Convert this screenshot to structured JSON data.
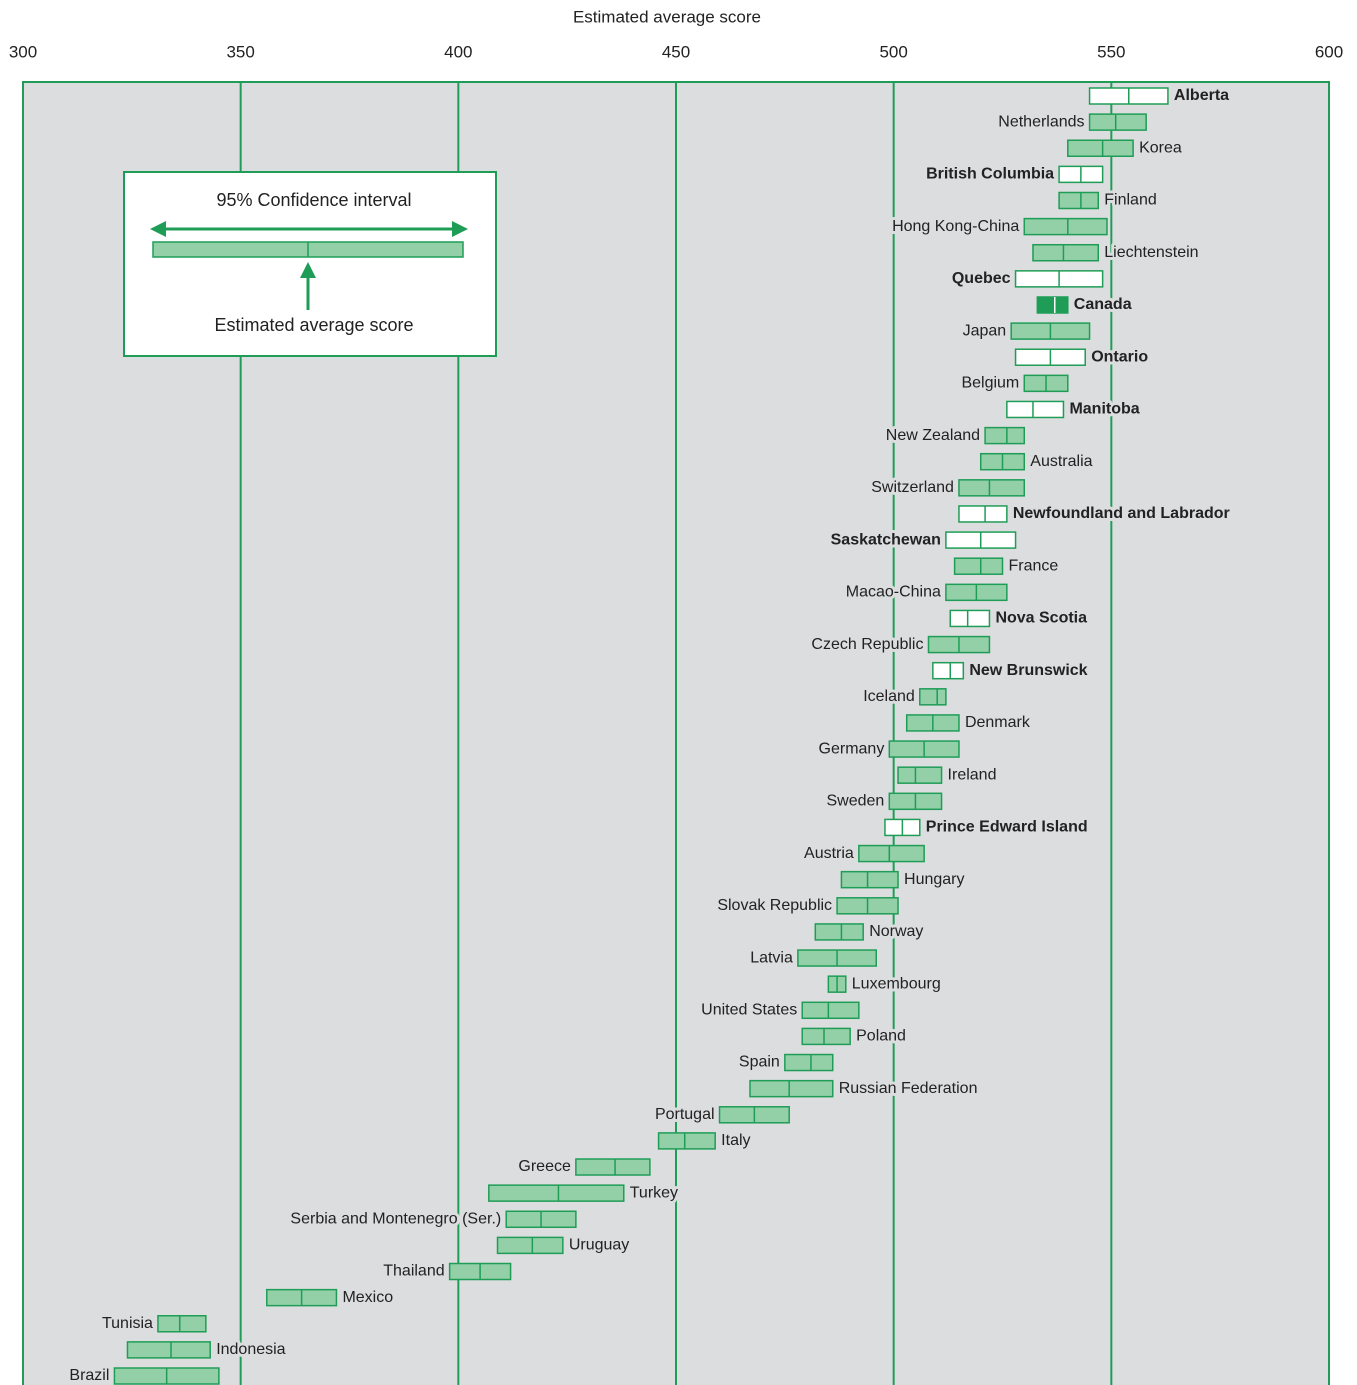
{
  "chart_data": {
    "type": "interval",
    "title": "Estimated average score",
    "xlim": [
      300,
      600
    ],
    "xticks": [
      300,
      350,
      400,
      450,
      500,
      550,
      600
    ],
    "grid": true,
    "color": "#1f9d57",
    "fill": "#93d0a8",
    "background": "#dcdddf",
    "legend": {
      "interval_label": "95% Confidence interval",
      "mean_label": "Estimated average score"
    },
    "categories": [
      "Alberta",
      "Netherlands",
      "Korea",
      "British Columbia",
      "Finland",
      "Hong Kong-China",
      "Liechtenstein",
      "Quebec",
      "Canada",
      "Japan",
      "Ontario",
      "Belgium",
      "Manitoba",
      "New Zealand",
      "Australia",
      "Switzerland",
      "Newfoundland and Labrador",
      "Saskatchewan",
      "France",
      "Macao-China",
      "Nova Scotia",
      "Czech Republic",
      "New Brunswick",
      "Iceland",
      "Denmark",
      "Germany",
      "Ireland",
      "Sweden",
      "Prince Edward Island",
      "Austria",
      "Hungary",
      "Slovak Republic",
      "Norway",
      "Latvia",
      "Luxembourg",
      "United States",
      "Poland",
      "Spain",
      "Russian Federation",
      "Portugal",
      "Italy",
      "Greece",
      "Turkey",
      "Serbia and Montenegro (Ser.)",
      "Uruguay",
      "Thailand",
      "Mexico",
      "Tunisia",
      "Indonesia",
      "Brazil"
    ],
    "low": [
      545,
      545,
      540,
      538,
      538,
      530,
      532,
      528,
      533,
      527,
      528,
      530,
      526,
      521,
      520,
      515,
      515,
      512,
      514,
      512,
      513,
      508,
      509,
      506,
      503,
      499,
      501,
      499,
      498,
      492,
      488,
      487,
      482,
      478,
      485,
      479,
      479,
      475,
      467,
      460,
      446,
      427,
      407,
      411,
      409,
      398,
      356,
      331,
      324,
      321
    ],
    "mean": [
      554,
      551,
      548,
      543,
      543,
      540,
      539,
      538,
      537,
      536,
      536,
      535,
      532,
      526,
      525,
      522,
      521,
      520,
      520,
      519,
      517,
      515,
      513,
      510,
      509,
      507,
      505,
      505,
      502,
      499,
      494,
      494,
      488,
      487,
      487,
      485,
      484,
      481,
      476,
      468,
      452,
      436,
      423,
      419,
      417,
      405,
      364,
      336,
      334,
      333
    ],
    "high": [
      563,
      558,
      555,
      548,
      547,
      549,
      547,
      548,
      540,
      545,
      544,
      540,
      539,
      530,
      530,
      530,
      526,
      528,
      525,
      526,
      522,
      522,
      516,
      512,
      515,
      515,
      511,
      511,
      506,
      507,
      501,
      501,
      493,
      496,
      489,
      492,
      490,
      486,
      486,
      476,
      459,
      444,
      438,
      427,
      424,
      412,
      372,
      342,
      343,
      345
    ],
    "fills": [
      "#ffffff",
      "#93d0a8",
      "#93d0a8",
      "#ffffff",
      "#93d0a8",
      "#93d0a8",
      "#93d0a8",
      "#ffffff",
      "#1f9d57",
      "#93d0a8",
      "#ffffff",
      "#93d0a8",
      "#ffffff",
      "#93d0a8",
      "#93d0a8",
      "#93d0a8",
      "#ffffff",
      "#ffffff",
      "#93d0a8",
      "#93d0a8",
      "#ffffff",
      "#93d0a8",
      "#ffffff",
      "#93d0a8",
      "#93d0a8",
      "#93d0a8",
      "#93d0a8",
      "#93d0a8",
      "#ffffff",
      "#93d0a8",
      "#93d0a8",
      "#93d0a8",
      "#93d0a8",
      "#93d0a8",
      "#93d0a8",
      "#93d0a8",
      "#93d0a8",
      "#93d0a8",
      "#93d0a8",
      "#93d0a8",
      "#93d0a8",
      "#93d0a8",
      "#93d0a8",
      "#93d0a8",
      "#93d0a8",
      "#93d0a8",
      "#93d0a8",
      "#93d0a8",
      "#93d0a8",
      "#93d0a8"
    ],
    "label_colors": [
      "#1f9d57",
      "#222222",
      "#222222",
      "#1f9d57",
      "#222222",
      "#222222",
      "#222222",
      "#1f9d57",
      "#1f9d57",
      "#222222",
      "#1f9d57",
      "#222222",
      "#1f9d57",
      "#222222",
      "#222222",
      "#222222",
      "#1f9d57",
      "#1f9d57",
      "#222222",
      "#222222",
      "#1f9d57",
      "#222222",
      "#1f9d57",
      "#222222",
      "#222222",
      "#222222",
      "#222222",
      "#222222",
      "#1f9d57",
      "#222222",
      "#222222",
      "#222222",
      "#222222",
      "#222222",
      "#222222",
      "#222222",
      "#222222",
      "#222222",
      "#222222",
      "#222222",
      "#222222",
      "#222222",
      "#222222",
      "#222222",
      "#222222",
      "#222222",
      "#222222",
      "#222222",
      "#222222",
      "#222222"
    ]
  }
}
